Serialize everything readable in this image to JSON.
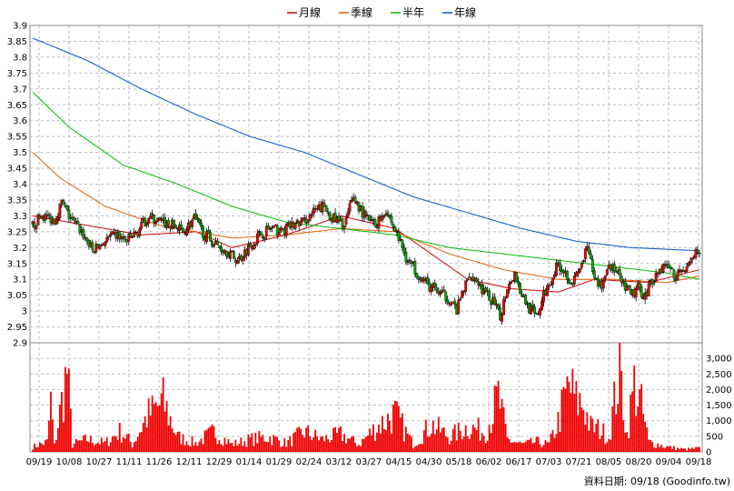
{
  "chart_data": {
    "type": "candlestick",
    "legend": [
      {
        "name": "月線",
        "color": "#cc0000"
      },
      {
        "name": "季線",
        "color": "#e06000"
      },
      {
        "name": "半年",
        "color": "#00bb00"
      },
      {
        "name": "年線",
        "color": "#0055cc"
      }
    ],
    "price_axis": {
      "min": 2.9,
      "max": 3.9,
      "step": 0.05,
      "ticks": [
        "2.9",
        "2.95",
        "3",
        "3.05",
        "3.1",
        "3.15",
        "3.2",
        "3.25",
        "3.3",
        "3.35",
        "3.4",
        "3.45",
        "3.5",
        "3.55",
        "3.6",
        "3.65",
        "3.7",
        "3.75",
        "3.8",
        "3.85",
        "3.9"
      ]
    },
    "volume_axis": {
      "min": 0,
      "max": 3500,
      "ticks": [
        "0",
        "500",
        "1,000",
        "1,500",
        "2,000",
        "2,500",
        "3,000"
      ]
    },
    "x_ticks": [
      "09/19",
      "10/08",
      "10/27",
      "11/11",
      "11/26",
      "12/11",
      "12/29",
      "01/14",
      "01/29",
      "02/24",
      "03/12",
      "03/27",
      "04/15",
      "04/30",
      "05/18",
      "06/02",
      "06/17",
      "07/03",
      "07/21",
      "08/05",
      "08/20",
      "09/04",
      "09/18"
    ],
    "price_keypoints": [
      [
        0,
        3.27
      ],
      [
        5,
        3.3
      ],
      [
        12,
        3.29
      ],
      [
        16,
        3.34
      ],
      [
        20,
        3.3
      ],
      [
        27,
        3.25
      ],
      [
        33,
        3.19
      ],
      [
        40,
        3.22
      ],
      [
        46,
        3.24
      ],
      [
        52,
        3.22
      ],
      [
        58,
        3.25
      ],
      [
        64,
        3.3
      ],
      [
        70,
        3.28
      ],
      [
        77,
        3.27
      ],
      [
        83,
        3.25
      ],
      [
        89,
        3.29
      ],
      [
        95,
        3.24
      ],
      [
        101,
        3.21
      ],
      [
        107,
        3.19
      ],
      [
        113,
        3.16
      ],
      [
        119,
        3.2
      ],
      [
        125,
        3.24
      ],
      [
        131,
        3.26
      ],
      [
        137,
        3.25
      ],
      [
        143,
        3.27
      ],
      [
        149,
        3.28
      ],
      [
        155,
        3.31
      ],
      [
        160,
        3.33
      ],
      [
        166,
        3.29
      ],
      [
        172,
        3.27
      ],
      [
        177,
        3.36
      ],
      [
        183,
        3.3
      ],
      [
        189,
        3.27
      ],
      [
        195,
        3.32
      ],
      [
        198,
        3.28
      ],
      [
        202,
        3.23
      ],
      [
        206,
        3.17
      ],
      [
        210,
        3.14
      ],
      [
        214,
        3.11
      ],
      [
        218,
        3.08
      ],
      [
        222,
        3.07
      ],
      [
        226,
        3.05
      ],
      [
        230,
        3.04
      ],
      [
        234,
        3.0
      ],
      [
        238,
        3.07
      ],
      [
        242,
        3.12
      ],
      [
        246,
        3.09
      ],
      [
        250,
        3.05
      ],
      [
        254,
        3.03
      ],
      [
        258,
        2.98
      ],
      [
        262,
        3.08
      ],
      [
        266,
        3.12
      ],
      [
        270,
        3.05
      ],
      [
        274,
        3.01
      ],
      [
        278,
        2.98
      ],
      [
        282,
        3.05
      ],
      [
        286,
        3.1
      ],
      [
        290,
        3.15
      ],
      [
        294,
        3.12
      ],
      [
        298,
        3.09
      ],
      [
        302,
        3.13
      ],
      [
        306,
        3.2
      ],
      [
        310,
        3.1
      ],
      [
        314,
        3.08
      ],
      [
        318,
        3.15
      ],
      [
        322,
        3.12
      ],
      [
        326,
        3.08
      ],
      [
        330,
        3.05
      ],
      [
        334,
        3.07
      ],
      [
        338,
        3.05
      ],
      [
        342,
        3.1
      ],
      [
        346,
        3.13
      ],
      [
        350,
        3.15
      ],
      [
        354,
        3.11
      ],
      [
        358,
        3.12
      ],
      [
        362,
        3.16
      ],
      [
        366,
        3.18
      ],
      [
        368,
        3.17
      ]
    ],
    "ma_keypoints": {
      "月線": [
        [
          0,
          3.3
        ],
        [
          30,
          3.27
        ],
        [
          60,
          3.24
        ],
        [
          90,
          3.25
        ],
        [
          110,
          3.2
        ],
        [
          140,
          3.24
        ],
        [
          170,
          3.3
        ],
        [
          200,
          3.26
        ],
        [
          215,
          3.2
        ],
        [
          240,
          3.1
        ],
        [
          265,
          3.07
        ],
        [
          290,
          3.06
        ],
        [
          310,
          3.1
        ],
        [
          340,
          3.09
        ],
        [
          368,
          3.13
        ]
      ],
      "季線": [
        [
          0,
          3.5
        ],
        [
          15,
          3.42
        ],
        [
          40,
          3.33
        ],
        [
          70,
          3.27
        ],
        [
          110,
          3.23
        ],
        [
          140,
          3.24
        ],
        [
          170,
          3.26
        ],
        [
          200,
          3.25
        ],
        [
          230,
          3.18
        ],
        [
          260,
          3.13
        ],
        [
          290,
          3.1
        ],
        [
          320,
          3.1
        ],
        [
          350,
          3.09
        ],
        [
          368,
          3.11
        ]
      ],
      "半年": [
        [
          0,
          3.69
        ],
        [
          20,
          3.58
        ],
        [
          50,
          3.46
        ],
        [
          80,
          3.4
        ],
        [
          110,
          3.33
        ],
        [
          140,
          3.28
        ],
        [
          170,
          3.26
        ],
        [
          200,
          3.24
        ],
        [
          230,
          3.2
        ],
        [
          260,
          3.18
        ],
        [
          290,
          3.16
        ],
        [
          320,
          3.14
        ],
        [
          350,
          3.12
        ],
        [
          368,
          3.1
        ]
      ],
      "年線": [
        [
          0,
          3.86
        ],
        [
          30,
          3.79
        ],
        [
          60,
          3.7
        ],
        [
          90,
          3.62
        ],
        [
          120,
          3.55
        ],
        [
          150,
          3.5
        ],
        [
          180,
          3.43
        ],
        [
          210,
          3.36
        ],
        [
          240,
          3.31
        ],
        [
          270,
          3.26
        ],
        [
          300,
          3.22
        ],
        [
          330,
          3.2
        ],
        [
          368,
          3.19
        ]
      ]
    },
    "volume_keypoints": [
      [
        0,
        200
      ],
      [
        8,
        400
      ],
      [
        10,
        2000
      ],
      [
        12,
        250
      ],
      [
        19,
        3250
      ],
      [
        22,
        300
      ],
      [
        30,
        500
      ],
      [
        40,
        350
      ],
      [
        48,
        800
      ],
      [
        52,
        600
      ],
      [
        55,
        300
      ],
      [
        63,
        1400
      ],
      [
        72,
        2000
      ],
      [
        80,
        600
      ],
      [
        90,
        350
      ],
      [
        100,
        800
      ],
      [
        110,
        300
      ],
      [
        120,
        500
      ],
      [
        130,
        600
      ],
      [
        140,
        350
      ],
      [
        150,
        800
      ],
      [
        160,
        500
      ],
      [
        170,
        700
      ],
      [
        180,
        300
      ],
      [
        190,
        1000
      ],
      [
        200,
        1500
      ],
      [
        210,
        300
      ],
      [
        220,
        1100
      ],
      [
        230,
        600
      ],
      [
        240,
        1000
      ],
      [
        250,
        800
      ],
      [
        257,
        2200
      ],
      [
        262,
        500
      ],
      [
        270,
        300
      ],
      [
        278,
        400
      ],
      [
        285,
        300
      ],
      [
        290,
        1200
      ],
      [
        296,
        2700
      ],
      [
        300,
        2000
      ],
      [
        304,
        1900
      ],
      [
        308,
        1000
      ],
      [
        313,
        900
      ],
      [
        318,
        600
      ],
      [
        324,
        3300
      ],
      [
        328,
        700
      ],
      [
        332,
        2700
      ],
      [
        336,
        1800
      ],
      [
        340,
        400
      ],
      [
        350,
        200
      ],
      [
        360,
        100
      ],
      [
        368,
        150
      ]
    ]
  },
  "footer": {
    "date_label": "資料日期: 09/18",
    "source": "(Goodinfo.tw)"
  }
}
